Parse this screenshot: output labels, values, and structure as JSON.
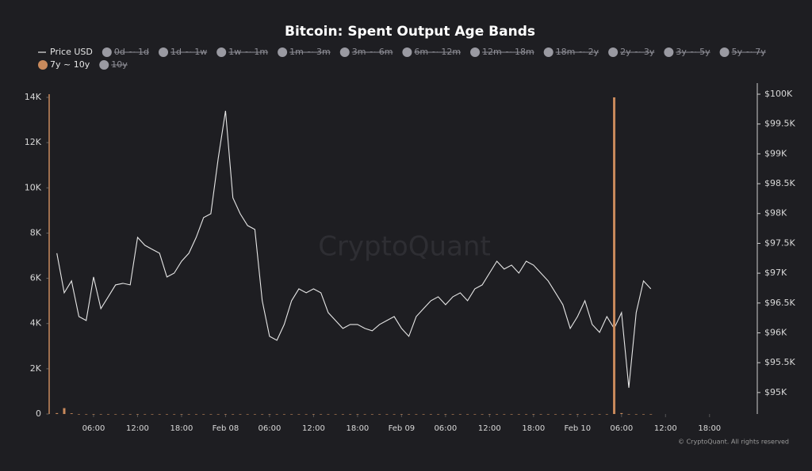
{
  "chart_data": {
    "type": "line-bar",
    "title": "Bitcoin: Spent Output Age Bands",
    "watermark": "CryptoQuant",
    "credit": "© CryptoQuant. All rights reserved",
    "x": [
      "Feb 07 01:00",
      "Feb 07 02:00",
      "Feb 07 03:00",
      "Feb 07 04:00",
      "Feb 07 05:00",
      "Feb 07 06:00",
      "Feb 07 07:00",
      "Feb 07 08:00",
      "Feb 07 09:00",
      "Feb 07 10:00",
      "Feb 07 11:00",
      "Feb 07 12:00",
      "Feb 07 13:00",
      "Feb 07 14:00",
      "Feb 07 15:00",
      "Feb 07 16:00",
      "Feb 07 17:00",
      "Feb 07 18:00",
      "Feb 07 19:00",
      "Feb 07 20:00",
      "Feb 07 21:00",
      "Feb 07 22:00",
      "Feb 07 23:00",
      "Feb 08 00:00",
      "Feb 08 01:00",
      "Feb 08 02:00",
      "Feb 08 03:00",
      "Feb 08 04:00",
      "Feb 08 05:00",
      "Feb 08 06:00",
      "Feb 08 07:00",
      "Feb 08 08:00",
      "Feb 08 09:00",
      "Feb 08 10:00",
      "Feb 08 11:00",
      "Feb 08 12:00",
      "Feb 08 13:00",
      "Feb 08 14:00",
      "Feb 08 15:00",
      "Feb 08 16:00",
      "Feb 08 17:00",
      "Feb 08 18:00",
      "Feb 08 19:00",
      "Feb 08 20:00",
      "Feb 08 21:00",
      "Feb 08 22:00",
      "Feb 08 23:00",
      "Feb 09 00:00",
      "Feb 09 01:00",
      "Feb 09 02:00",
      "Feb 09 03:00",
      "Feb 09 04:00",
      "Feb 09 05:00",
      "Feb 09 06:00",
      "Feb 09 07:00",
      "Feb 09 08:00",
      "Feb 09 09:00",
      "Feb 09 10:00",
      "Feb 09 11:00",
      "Feb 09 12:00",
      "Feb 09 13:00",
      "Feb 09 14:00",
      "Feb 09 15:00",
      "Feb 09 16:00",
      "Feb 09 17:00",
      "Feb 09 18:00",
      "Feb 09 19:00",
      "Feb 09 20:00",
      "Feb 09 21:00",
      "Feb 09 22:00",
      "Feb 09 23:00",
      "Feb 10 00:00",
      "Feb 10 01:00",
      "Feb 10 02:00",
      "Feb 10 03:00",
      "Feb 10 04:00",
      "Feb 10 05:00",
      "Feb 10 06:00",
      "Feb 10 07:00",
      "Feb 10 08:00",
      "Feb 10 09:00",
      "Feb 10 10:00"
    ],
    "series": [
      {
        "name": "Price USD",
        "color": "#e6e6e6",
        "axis": "y2",
        "kind": "line",
        "values": [
          97334,
          96671,
          96870,
          96273,
          96207,
          96936,
          96406,
          96605,
          96804,
          96830,
          96804,
          97600,
          97467,
          97400,
          97334,
          96936,
          97002,
          97201,
          97334,
          97600,
          97931,
          97997,
          98926,
          99721,
          98263,
          97997,
          97799,
          97732,
          96538,
          95942,
          95875,
          96141,
          96538,
          96737,
          96671,
          96737,
          96671,
          96340,
          96207,
          96074,
          96141,
          96141,
          96074,
          96034,
          96141,
          96207,
          96273,
          96074,
          95942,
          96273,
          96406,
          96538,
          96605,
          96472,
          96605,
          96671,
          96538,
          96737,
          96804,
          97002,
          97201,
          97069,
          97135,
          97002,
          97201,
          97135,
          97002,
          96870,
          96671,
          96472,
          96074,
          96273,
          96538,
          96141,
          96008,
          96273,
          96074,
          96340,
          95081,
          96340,
          96870,
          96737
        ]
      },
      {
        "name": "0d ~ 1d",
        "color": "#9a9aa2",
        "hidden": true
      },
      {
        "name": "1d ~ 1w",
        "color": "#9a9aa2",
        "hidden": true
      },
      {
        "name": "1w ~ 1m",
        "color": "#9a9aa2",
        "hidden": true
      },
      {
        "name": "1m ~ 3m",
        "color": "#9a9aa2",
        "hidden": true
      },
      {
        "name": "3m ~ 6m",
        "color": "#9a9aa2",
        "hidden": true
      },
      {
        "name": "6m ~ 12m",
        "color": "#9a9aa2",
        "hidden": true
      },
      {
        "name": "12m ~ 18m",
        "color": "#9a9aa2",
        "hidden": true
      },
      {
        "name": "18m ~ 2y",
        "color": "#9a9aa2",
        "hidden": true
      },
      {
        "name": "2y ~ 3y",
        "color": "#9a9aa2",
        "hidden": true
      },
      {
        "name": "3y ~ 5y",
        "color": "#9a9aa2",
        "hidden": true
      },
      {
        "name": "5y ~ 7y",
        "color": "#9a9aa2",
        "hidden": true
      },
      {
        "name": "7y ~ 10y",
        "color": "#c98a5c",
        "kind": "bar",
        "values": [
          40,
          260,
          30,
          0,
          0,
          0,
          0,
          0,
          0,
          0,
          0,
          0,
          0,
          0,
          0,
          0,
          0,
          0,
          0,
          0,
          0,
          0,
          0,
          0,
          0,
          0,
          0,
          0,
          0,
          0,
          0,
          0,
          0,
          0,
          0,
          0,
          0,
          0,
          0,
          0,
          0,
          0,
          0,
          0,
          0,
          0,
          0,
          0,
          0,
          0,
          0,
          0,
          0,
          0,
          0,
          0,
          0,
          0,
          0,
          0,
          0,
          0,
          0,
          0,
          0,
          0,
          0,
          0,
          0,
          0,
          0,
          0,
          0,
          0,
          0,
          0,
          14000,
          40,
          0,
          0,
          0,
          0
        ]
      },
      {
        "name": "10y",
        "color": "#9a9aa2",
        "hidden": true
      }
    ],
    "xlim": [
      "Feb 07 00:00",
      "Feb 10 23:00"
    ],
    "xticks": [
      {
        "value": "Feb 07 06:00",
        "label": "06:00"
      },
      {
        "value": "Feb 07 12:00",
        "label": "12:00"
      },
      {
        "value": "Feb 07 18:00",
        "label": "18:00"
      },
      {
        "value": "Feb 08 00:00",
        "label": "Feb 08"
      },
      {
        "value": "Feb 08 06:00",
        "label": "06:00"
      },
      {
        "value": "Feb 08 12:00",
        "label": "12:00"
      },
      {
        "value": "Feb 08 18:00",
        "label": "18:00"
      },
      {
        "value": "Feb 09 00:00",
        "label": "Feb 09"
      },
      {
        "value": "Feb 09 06:00",
        "label": "06:00"
      },
      {
        "value": "Feb 09 12:00",
        "label": "12:00"
      },
      {
        "value": "Feb 09 18:00",
        "label": "18:00"
      },
      {
        "value": "Feb 10 00:00",
        "label": "Feb 10"
      },
      {
        "value": "Feb 10 06:00",
        "label": "06:00"
      },
      {
        "value": "Feb 10 12:00",
        "label": "12:00"
      },
      {
        "value": "Feb 10 18:00",
        "label": "18:00"
      }
    ],
    "ylim": [
      0,
      14140
    ],
    "yticks": [
      0,
      {
        "value": 2000,
        "label": "2K"
      },
      {
        "value": 4000,
        "label": "4K"
      },
      {
        "value": 6000,
        "label": "6K"
      },
      {
        "value": 8000,
        "label": "8K"
      },
      {
        "value": 10000,
        "label": "10K"
      },
      {
        "value": 12000,
        "label": "12K"
      },
      {
        "value": 14000,
        "label": "14K"
      }
    ],
    "y2lim": [
      94640,
      100000
    ],
    "y2ticks": [
      {
        "value": 95000,
        "label": "$95K"
      },
      {
        "value": 95500,
        "label": "$95.5K"
      },
      {
        "value": 96000,
        "label": "$96K"
      },
      {
        "value": 96500,
        "label": "$96.5K"
      },
      {
        "value": 97000,
        "label": "$97K"
      },
      {
        "value": 97500,
        "label": "$97.5K"
      },
      {
        "value": 98000,
        "label": "$98K"
      },
      {
        "value": 98500,
        "label": "$98.5K"
      },
      {
        "value": 99000,
        "label": "$99K"
      },
      {
        "value": 99500,
        "label": "$99.5K"
      },
      {
        "value": 100000,
        "label": "$100K"
      }
    ],
    "grid": false,
    "legend": "top"
  }
}
